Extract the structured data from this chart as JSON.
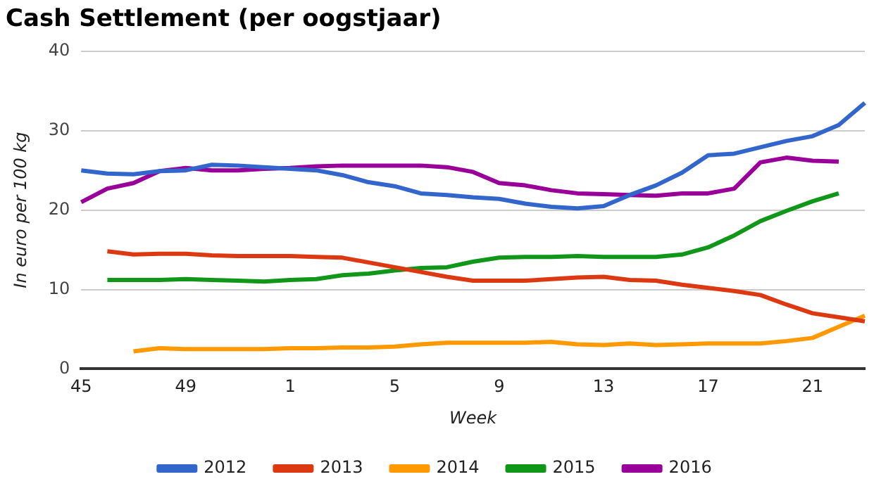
{
  "chart_data": {
    "type": "line",
    "title": "Cash Settlement (per oogstjaar)",
    "xlabel": "Week",
    "ylabel": "In euro per 100 kg",
    "categories": [
      "45",
      null,
      null,
      null,
      "49",
      null,
      null,
      null,
      "1",
      null,
      null,
      null,
      "5",
      null,
      null,
      null,
      "9",
      null,
      null,
      null,
      "13",
      null,
      null,
      null,
      "17",
      null,
      null,
      null,
      "21",
      null,
      null
    ],
    "series": [
      {
        "name": "2012",
        "color": "#3366cc",
        "values": [
          25.0,
          24.6,
          24.5,
          24.9,
          25.0,
          25.7,
          25.6,
          25.4,
          25.2,
          25.0,
          24.4,
          23.5,
          23.0,
          22.1,
          21.9,
          21.6,
          21.4,
          20.8,
          20.4,
          20.2,
          20.5,
          21.9,
          23.1,
          24.7,
          26.9,
          27.1,
          27.9,
          28.7,
          29.3,
          30.7,
          33.5
        ]
      },
      {
        "name": "2013",
        "color": "#dc3912",
        "values": [
          null,
          14.8,
          14.4,
          14.5,
          14.5,
          14.3,
          14.2,
          14.2,
          14.2,
          14.1,
          14.0,
          13.4,
          12.8,
          12.2,
          11.6,
          11.1,
          11.1,
          11.1,
          11.3,
          11.5,
          11.6,
          11.2,
          11.1,
          10.6,
          10.2,
          9.8,
          9.3,
          8.1,
          7.0,
          6.5,
          6.0
        ]
      },
      {
        "name": "2014",
        "color": "#ff9900",
        "values": [
          null,
          null,
          2.2,
          2.6,
          2.5,
          2.5,
          2.5,
          2.5,
          2.6,
          2.6,
          2.7,
          2.7,
          2.8,
          3.1,
          3.3,
          3.3,
          3.3,
          3.3,
          3.4,
          3.1,
          3.0,
          3.2,
          3.0,
          3.1,
          3.2,
          3.2,
          3.2,
          3.5,
          3.9,
          5.3,
          6.7
        ]
      },
      {
        "name": "2015",
        "color": "#109618",
        "values": [
          null,
          11.2,
          11.2,
          11.2,
          11.3,
          11.2,
          11.1,
          11.0,
          11.2,
          11.3,
          11.8,
          12.0,
          12.4,
          12.7,
          12.8,
          13.5,
          14.0,
          14.1,
          14.1,
          14.2,
          14.1,
          14.1,
          14.1,
          14.4,
          15.3,
          16.8,
          18.6,
          19.9,
          21.1,
          22.1,
          null
        ]
      },
      {
        "name": "2016",
        "color": "#990099",
        "values": [
          21.0,
          22.7,
          23.4,
          24.9,
          25.3,
          25.0,
          25.0,
          25.2,
          25.3,
          25.5,
          25.6,
          25.6,
          25.6,
          25.6,
          25.4,
          24.8,
          23.4,
          23.1,
          22.5,
          22.1,
          22.0,
          21.9,
          21.8,
          22.1,
          22.1,
          22.7,
          26.0,
          26.6,
          26.2,
          26.1,
          null
        ]
      }
    ],
    "ylim": [
      0,
      40
    ],
    "yticks": [
      0,
      10,
      20,
      30,
      40
    ],
    "grid": "y",
    "legend": "bottom",
    "marker": "none",
    "line_style": "solid"
  }
}
